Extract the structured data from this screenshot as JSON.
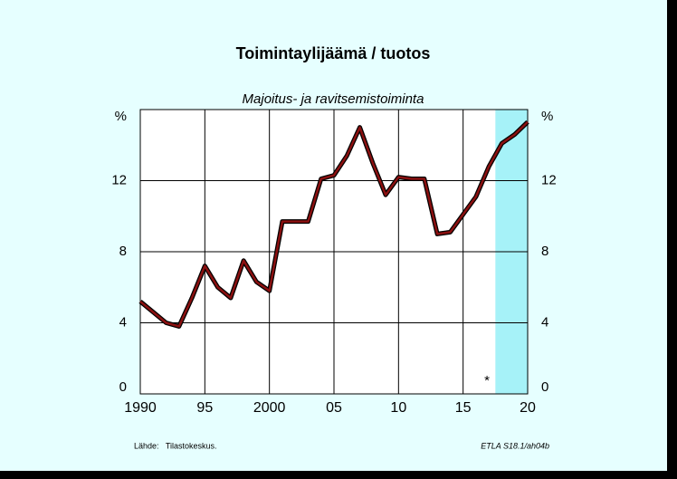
{
  "chart_data": {
    "type": "line",
    "title": "Toimintaylijäämä / tuotos",
    "subtitle": "Majoitus- ja ravitsemistoiminta",
    "x": [
      1990,
      1991,
      1992,
      1993,
      1994,
      1995,
      1996,
      1997,
      1998,
      1999,
      2000,
      2001,
      2002,
      2003,
      2004,
      2005,
      2006,
      2007,
      2008,
      2009,
      2010,
      2011,
      2012,
      2013,
      2014,
      2015,
      2016,
      2017,
      2018,
      2019,
      2020
    ],
    "series": [
      {
        "color": "#8b1010",
        "values": [
          5.2,
          4.6,
          4.0,
          3.8,
          5.4,
          7.2,
          6.0,
          5.4,
          7.5,
          6.3,
          5.8,
          9.7,
          9.7,
          9.7,
          12.1,
          12.3,
          13.4,
          15.0,
          13.0,
          11.2,
          12.2,
          12.1,
          12.1,
          9.0,
          9.1,
          10.1,
          11.1,
          12.8,
          14.1,
          14.6,
          15.3
        ]
      }
    ],
    "xlim": [
      1990,
      2020
    ],
    "xticks": [
      1990,
      {
        "value": 1995,
        "label": "95"
      },
      2000,
      {
        "value": 2005,
        "label": "05"
      },
      {
        "value": 2010,
        "label": "10"
      },
      {
        "value": 2015,
        "label": "15"
      },
      {
        "value": 2020,
        "label": "20"
      }
    ],
    "ylim": [
      0,
      16
    ],
    "yticks": [
      0,
      4,
      8,
      12,
      {
        "value": 16,
        "label": "%"
      }
    ],
    "grid": true,
    "forecast_xlim": [
      2017.5,
      2020
    ],
    "forecast_color": "#a6f2f8",
    "forecast_marker": "*",
    "source": "Lähde:   Tilastokeskus.",
    "code": "ETLA S18.1/ah04b"
  }
}
